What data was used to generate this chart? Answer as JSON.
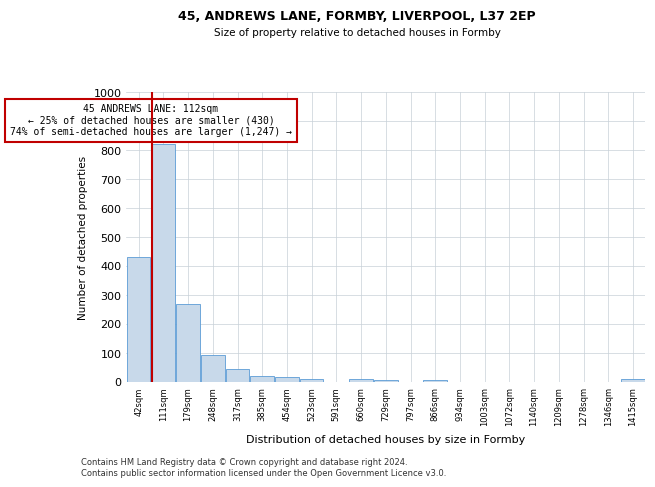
{
  "title1": "45, ANDREWS LANE, FORMBY, LIVERPOOL, L37 2EP",
  "title2": "Size of property relative to detached houses in Formby",
  "xlabel": "Distribution of detached houses by size in Formby",
  "ylabel": "Number of detached properties",
  "categories": [
    "42sqm",
    "111sqm",
    "179sqm",
    "248sqm",
    "317sqm",
    "385sqm",
    "454sqm",
    "523sqm",
    "591sqm",
    "660sqm",
    "729sqm",
    "797sqm",
    "866sqm",
    "934sqm",
    "1003sqm",
    "1072sqm",
    "1140sqm",
    "1209sqm",
    "1278sqm",
    "1346sqm",
    "1415sqm"
  ],
  "values": [
    430,
    820,
    270,
    92,
    45,
    22,
    18,
    12,
    0,
    12,
    8,
    0,
    8,
    0,
    0,
    0,
    0,
    0,
    0,
    0,
    10
  ],
  "bar_color": "#c8d9ea",
  "bar_edge_color": "#5b9bd5",
  "vline_color": "#c00000",
  "annotation_text": "45 ANDREWS LANE: 112sqm\n← 25% of detached houses are smaller (430)\n74% of semi-detached houses are larger (1,247) →",
  "annotation_box_color": "#ffffff",
  "annotation_box_edge": "#c00000",
  "ylim": [
    0,
    1000
  ],
  "yticks": [
    0,
    100,
    200,
    300,
    400,
    500,
    600,
    700,
    800,
    900,
    1000
  ],
  "footer": "Contains HM Land Registry data © Crown copyright and database right 2024.\nContains public sector information licensed under the Open Government Licence v3.0.",
  "bg_color": "#ffffff",
  "grid_color": "#c8d0d8"
}
